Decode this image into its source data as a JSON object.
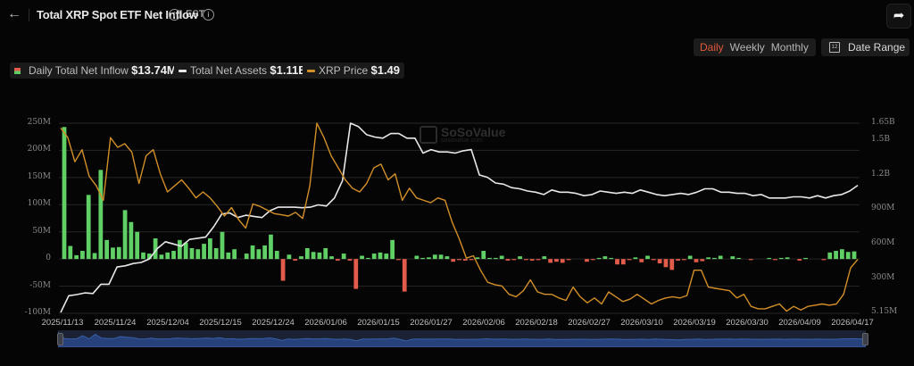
{
  "header": {
    "back_icon": "arrow-left-icon",
    "title": "Total XRP Spot ETF Net Inflow",
    "timezone": "EST",
    "share_icon": "share-icon"
  },
  "controls": {
    "periods": [
      {
        "label": "Daily",
        "active": true
      },
      {
        "label": "Weekly",
        "active": false
      },
      {
        "label": "Monthly",
        "active": false
      }
    ],
    "date_range_label": "Date Range",
    "calendar_icon_text": "12"
  },
  "legend": [
    {
      "label": "Daily Total Net Inflow",
      "value": "$13.74M",
      "color_pos": "#5fcf66",
      "color_neg": "#e25b4b"
    },
    {
      "label": "Total Net Assets",
      "value": "$1.11B",
      "color": "#e8e8e8"
    },
    {
      "label": "XRP Price",
      "value": "$1.49",
      "color": "#d38f28"
    }
  ],
  "watermark": {
    "name": "SoSoValue",
    "site": "sosovalue.com"
  },
  "chart_data": {
    "type": "bar+line",
    "title": "Total XRP Spot ETF Net Inflow",
    "left_axis": {
      "ticks": [
        "250M",
        "200M",
        "150M",
        "100M",
        "50M",
        "0",
        "-50M",
        "-100M"
      ],
      "range": [
        -100000000,
        250000000
      ]
    },
    "right_axis": {
      "ticks": [
        "1.65B",
        "1.5B",
        "1.2B",
        "900M",
        "600M",
        "300M",
        "5.15M"
      ],
      "range": [
        5150000,
        1650000000
      ]
    },
    "x_ticks": [
      "2025/11/13",
      "2025/11/24",
      "2025/12/04",
      "2025/12/15",
      "2025/12/24",
      "2026/01/06",
      "2026/01/15",
      "2026/01/27",
      "2026/02/06",
      "2026/02/18",
      "2026/02/27",
      "2026/03/10",
      "2026/03/19",
      "2026/03/30",
      "2026/04/09",
      "2026/04/17"
    ],
    "series": [
      {
        "name": "Daily Total Net Inflow",
        "type": "bar",
        "unit": "USD millions",
        "values": [
          243,
          24,
          7,
          15,
          118,
          11,
          164,
          35,
          21,
          22,
          90,
          68,
          50,
          12,
          10,
          38,
          8,
          12,
          15,
          35,
          30,
          20,
          18,
          28,
          38,
          20,
          50,
          12,
          18,
          0,
          10,
          25,
          18,
          25,
          45,
          15,
          -40,
          8,
          -3,
          5,
          20,
          13,
          12,
          20,
          5,
          -3,
          10,
          -3,
          -55,
          6,
          2,
          10,
          12,
          10,
          35,
          -2,
          -60,
          0,
          6,
          2,
          3,
          8,
          8,
          5,
          -5,
          -2,
          -3,
          -2,
          3,
          15,
          2,
          2,
          6,
          -3,
          -1,
          5,
          -1,
          -3,
          -2,
          5,
          -7,
          -5,
          -7,
          -1,
          0,
          0,
          -5,
          -2,
          2,
          5,
          2,
          -10,
          -10,
          -2,
          3,
          -6,
          6,
          -1,
          -8,
          -15,
          -20,
          -3,
          -2,
          6,
          -6,
          -4,
          3,
          2,
          6,
          0,
          5,
          2,
          0,
          -2,
          0,
          0,
          2,
          -2,
          2,
          3,
          0,
          -3,
          2,
          0,
          0,
          -2,
          12,
          15,
          18,
          13,
          14
        ]
      },
      {
        "name": "Total Net Assets",
        "type": "line",
        "unit": "USD",
        "values_approx": [
          5000000,
          150000000,
          160000000,
          175000000,
          170000000,
          250000000,
          250000000,
          400000000,
          410000000,
          430000000,
          440000000,
          470000000,
          560000000,
          620000000,
          600000000,
          580000000,
          640000000,
          650000000,
          660000000,
          750000000,
          860000000,
          870000000,
          830000000,
          850000000,
          840000000,
          830000000,
          890000000,
          920000000,
          920000000,
          920000000,
          915000000,
          920000000,
          940000000,
          930000000,
          1000000000,
          1150000000,
          1650000000,
          1620000000,
          1550000000,
          1530000000,
          1520000000,
          1560000000,
          1560000000,
          1520000000,
          1520000000,
          1390000000,
          1420000000,
          1400000000,
          1400000000,
          1390000000,
          1410000000,
          1420000000,
          1200000000,
          1180000000,
          1130000000,
          1120000000,
          1090000000,
          1080000000,
          1060000000,
          1050000000,
          1030000000,
          1070000000,
          1050000000,
          1050000000,
          1040000000,
          1020000000,
          1030000000,
          1060000000,
          1050000000,
          1040000000,
          1050000000,
          1040000000,
          1070000000,
          1050000000,
          1030000000,
          1020000000,
          1030000000,
          1040000000,
          1030000000,
          1050000000,
          1080000000,
          1080000000,
          1050000000,
          1050000000,
          1040000000,
          1040000000,
          1020000000,
          1030000000,
          1000000000,
          1000000000,
          1000000000,
          1010000000,
          1010000000,
          1000000000,
          1020000000,
          1000000000,
          1020000000,
          1030000000,
          1060000000,
          1110000000
        ]
      },
      {
        "name": "XRP Price",
        "type": "line",
        "unit": "USD",
        "values_approx": [
          2.58,
          2.5,
          2.3,
          2.4,
          2.18,
          2.1,
          1.98,
          2.5,
          2.42,
          2.45,
          2.38,
          2.12,
          2.35,
          2.4,
          2.2,
          2.05,
          2.1,
          2.15,
          2.08,
          2.0,
          2.05,
          2.0,
          1.93,
          1.85,
          1.92,
          1.82,
          1.75,
          1.95,
          1.93,
          1.9,
          1.87,
          1.86,
          1.85,
          1.88,
          1.83,
          2.1,
          2.62,
          2.5,
          2.35,
          2.25,
          2.15,
          2.08,
          2.05,
          2.12,
          2.25,
          2.28,
          2.15,
          2.2,
          1.98,
          2.08,
          2.0,
          1.98,
          1.96,
          2.0,
          1.98,
          1.8,
          1.66,
          1.5,
          1.52,
          1.4,
          1.3,
          1.28,
          1.27,
          1.2,
          1.18,
          1.23,
          1.32,
          1.22,
          1.2,
          1.2,
          1.17,
          1.15,
          1.26,
          1.18,
          1.13,
          1.17,
          1.12,
          1.22,
          1.18,
          1.14,
          1.16,
          1.2,
          1.16,
          1.12,
          1.15,
          1.17,
          1.18,
          1.17,
          1.19,
          1.4,
          1.4,
          1.26,
          1.25,
          1.24,
          1.23,
          1.17,
          1.2,
          1.1,
          1.08,
          1.08,
          1.1,
          1.12,
          1.06,
          1.1,
          1.07,
          1.1,
          1.11,
          1.12,
          1.11,
          1.12,
          1.2,
          1.42,
          1.49
        ]
      }
    ],
    "grid": true,
    "legend_position": "top-left"
  },
  "navigator": {
    "left_handle_icon": "drag-handle-icon",
    "right_handle_icon": "drag-handle-icon"
  }
}
